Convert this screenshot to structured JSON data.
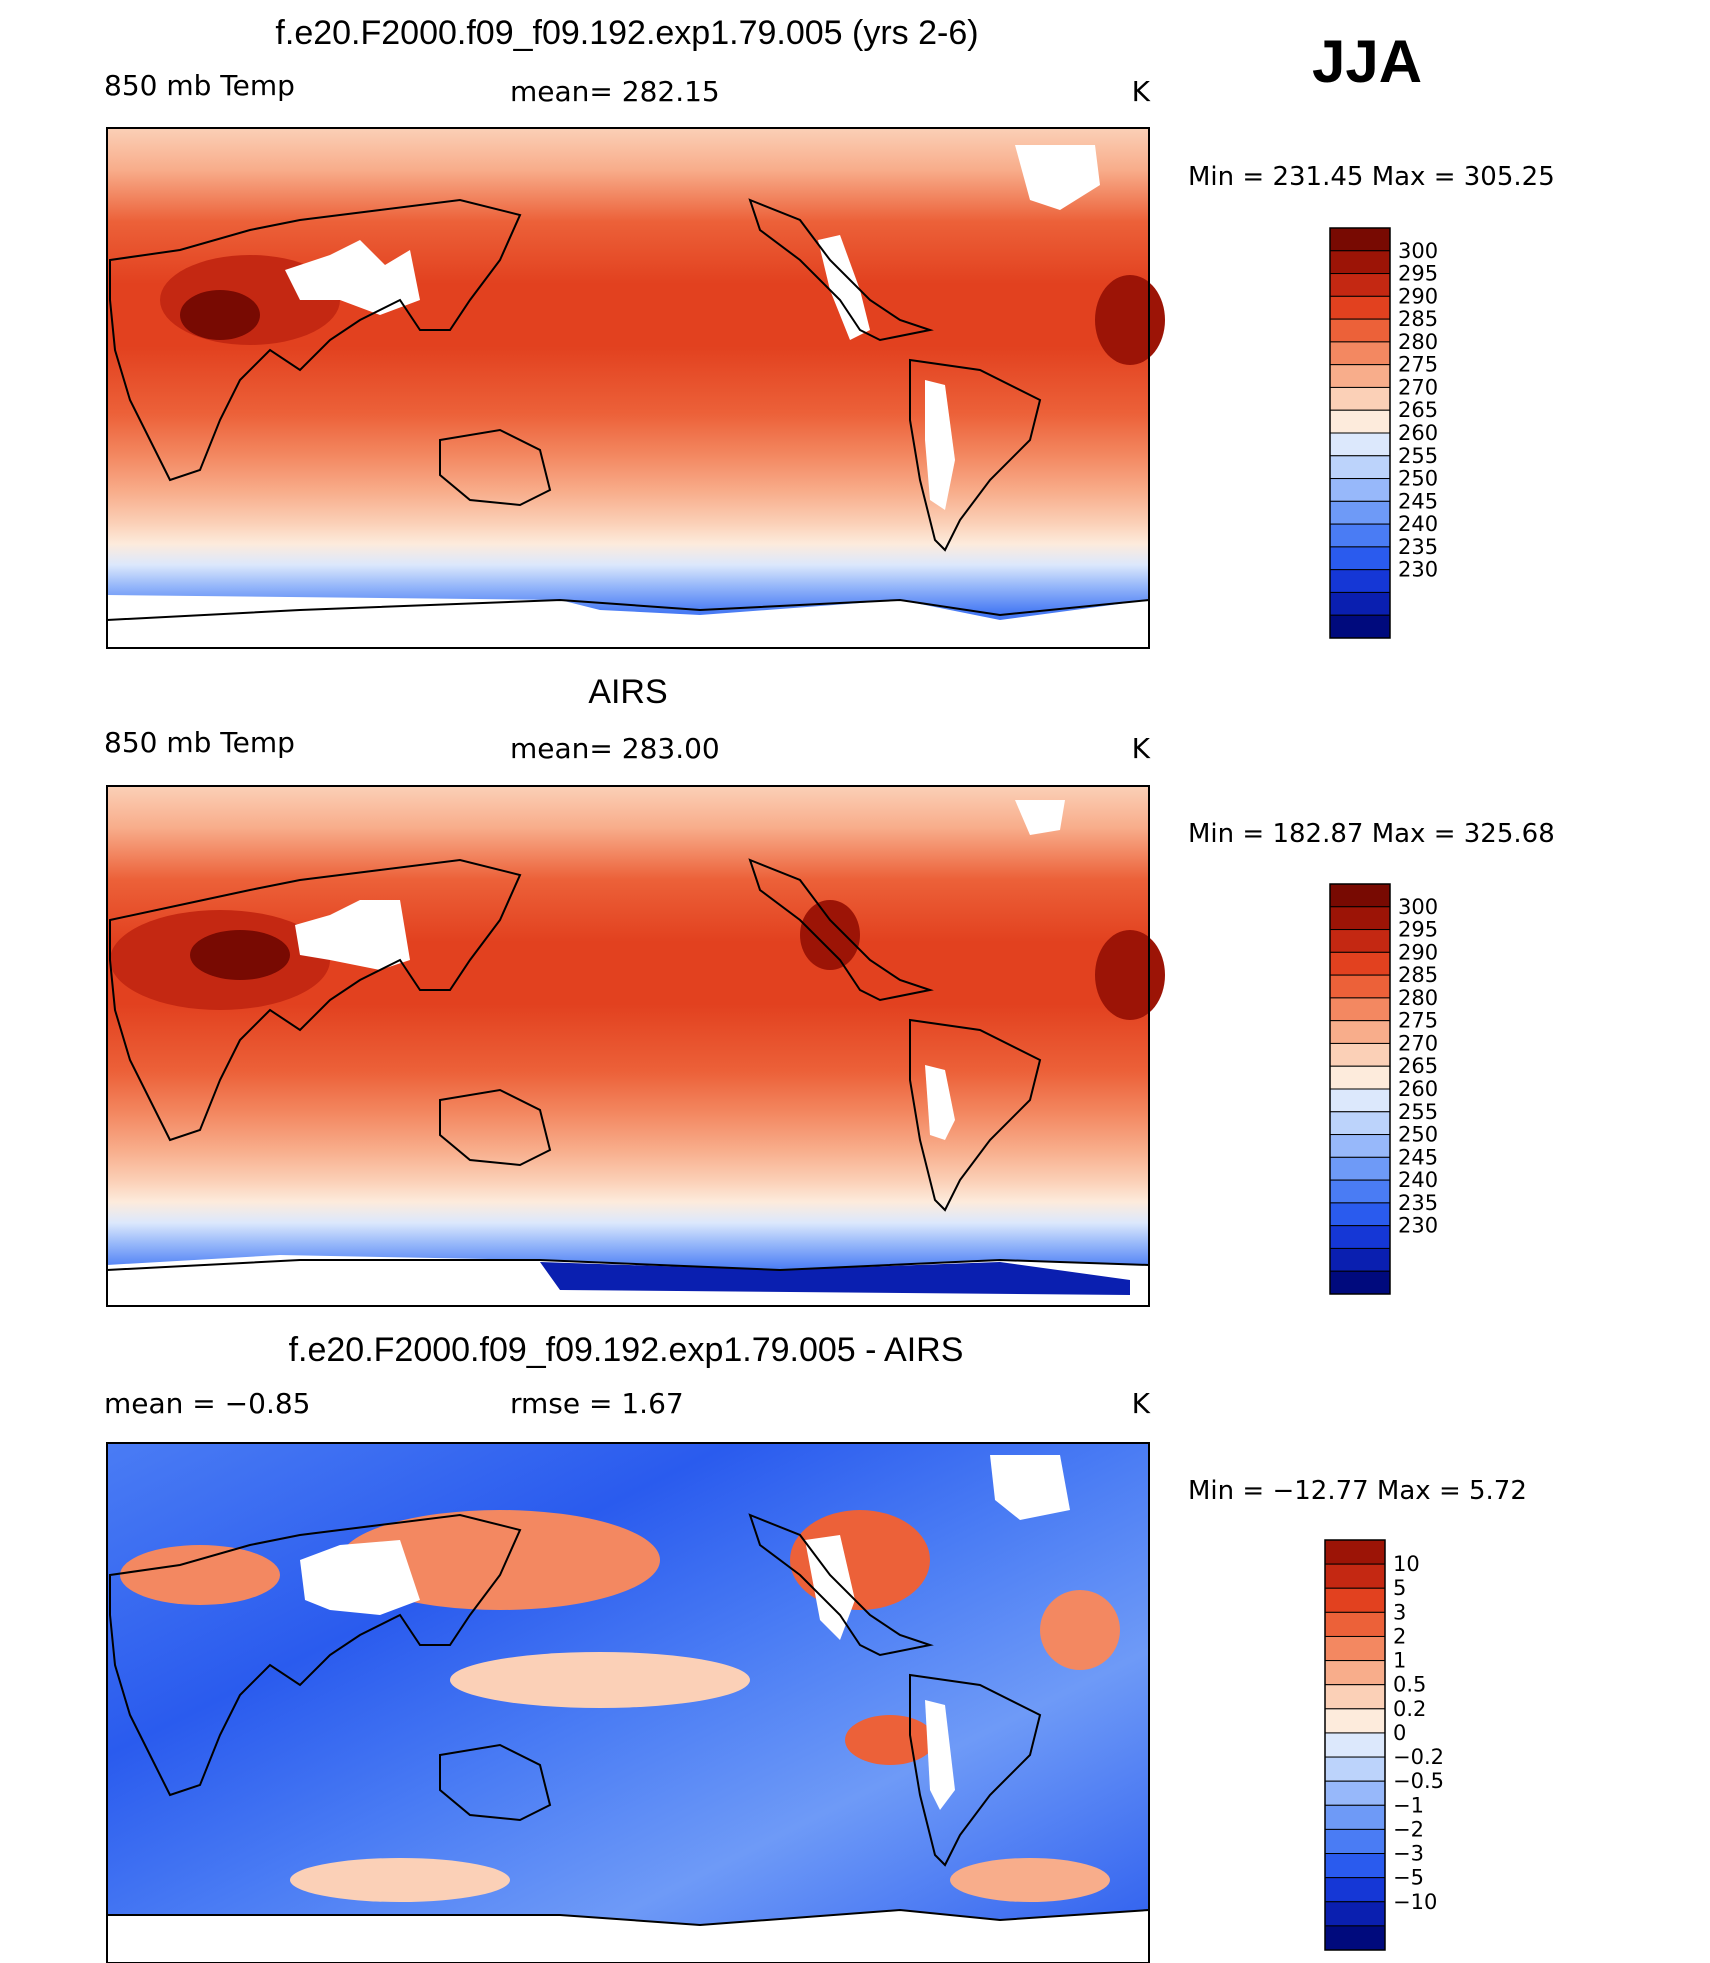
{
  "season": "JJA",
  "palettes": {
    "temp": [
      "#000a7d",
      "#0a1fb0",
      "#1537d6",
      "#2a5bee",
      "#4a7cf4",
      "#6e9af7",
      "#97b8fa",
      "#bcd3fb",
      "#dce8fc",
      "#fdebdc",
      "#fbd0b7",
      "#f8ad8b",
      "#f38861",
      "#ec6139",
      "#e2411f",
      "#c42812",
      "#9c1406",
      "#780a02"
    ],
    "diff": [
      "#000a7d",
      "#0a1fb0",
      "#1537d6",
      "#2a5bee",
      "#4a7cf4",
      "#6e9af7",
      "#97b8fa",
      "#bcd3fb",
      "#dce8fc",
      "#fdebdc",
      "#fbd0b7",
      "#f8ad8b",
      "#f38861",
      "#ec6139",
      "#e2411f",
      "#c42812",
      "#9c1406"
    ]
  },
  "chart_data": [
    {
      "type": "heatmap",
      "title": "f.e20.F2000.f09_f09.192.exp1.79.005 (yrs 2-6)",
      "variable": "850 mb Temp",
      "mean_text": "mean= 282.15",
      "units": "K",
      "minmax_text": "Min  =  231.45  Max  =  305.25",
      "min": 231.45,
      "max": 305.25,
      "mean": 282.15,
      "colorbar_levels": [
        "300",
        "295",
        "290",
        "285",
        "280",
        "275",
        "270",
        "265",
        "260",
        "255",
        "250",
        "245",
        "240",
        "235",
        "230"
      ],
      "palette": "temp"
    },
    {
      "type": "heatmap",
      "title": "AIRS",
      "variable": "850 mb Temp",
      "mean_text": "mean= 283.00",
      "units": "K",
      "minmax_text": "Min  =  182.87  Max  =  325.68",
      "min": 182.87,
      "max": 325.68,
      "mean": 283.0,
      "colorbar_levels": [
        "300",
        "295",
        "290",
        "285",
        "280",
        "275",
        "270",
        "265",
        "260",
        "255",
        "250",
        "245",
        "240",
        "235",
        "230"
      ],
      "palette": "temp"
    },
    {
      "type": "heatmap",
      "title": "f.e20.F2000.f09_f09.192.exp1.79.005 - AIRS",
      "variable": "mean  =    −0.85",
      "mean_text": "rmse  =     1.67",
      "units": "K",
      "minmax_text": "Min  =  −12.77  Max  =     5.72",
      "min": -12.77,
      "max": 5.72,
      "mean": -0.85,
      "rmse": 1.67,
      "colorbar_levels": [
        "10",
        "5",
        "3",
        "2",
        "1",
        "0.5",
        "0.2",
        "0",
        "−0.2",
        "−0.5",
        "−1",
        "−2",
        "−3",
        "−5",
        "−10"
      ],
      "palette": "diff"
    }
  ]
}
